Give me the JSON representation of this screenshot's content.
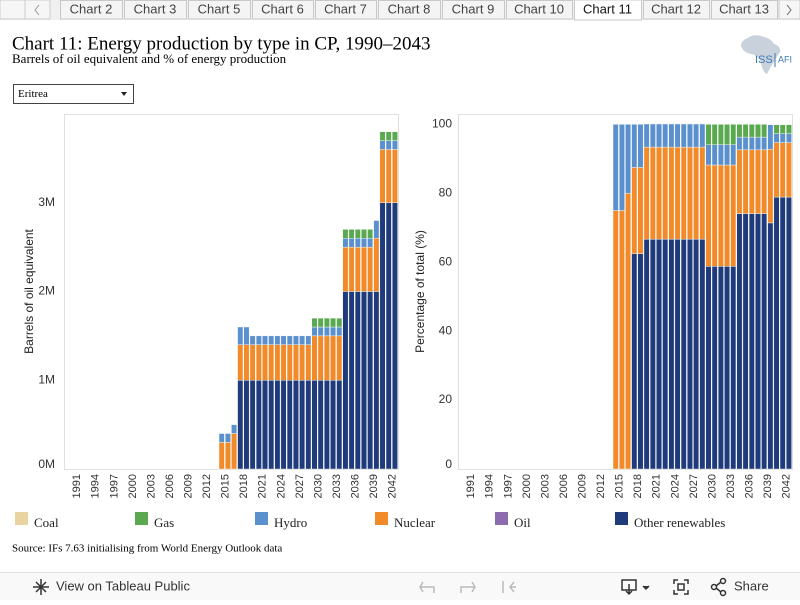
{
  "tabs": [
    "Chart 2",
    "Chart 3",
    "Chart 5",
    "Chart 6",
    "Chart 7",
    "Chart 8",
    "Chart 9",
    "Chart 10",
    "Chart 11",
    "Chart 12",
    "Chart 13"
  ],
  "active_tab": 8,
  "title": "Chart 11: Energy production by type in CP, 1990–2043",
  "subtitle": "Barrels of oil equivalent and % of energy production",
  "logo": {
    "left": "ISS",
    "right": "AFI"
  },
  "dropdown": "Eritrea",
  "legend": [
    {
      "name": "Coal",
      "color": "#e9d3a1"
    },
    {
      "name": "Gas",
      "color": "#5aa84f"
    },
    {
      "name": "Hydro",
      "color": "#5b90cf"
    },
    {
      "name": "Nuclear",
      "color": "#f28a2a"
    },
    {
      "name": "Oil",
      "color": "#8b6cae"
    },
    {
      "name": "Other renewables",
      "color": "#1f3b7b"
    }
  ],
  "source": "Source: IFs 7.63 initialising from World Energy Outlook data",
  "toolbar": {
    "view": "View on Tableau Public",
    "share": "Share"
  },
  "chart_data": [
    {
      "type": "stacked-bar",
      "y_label": "Barrels of oil equivalent",
      "categories": [
        null,
        "1991",
        null,
        null,
        "1994",
        null,
        null,
        "1997",
        null,
        null,
        "2000",
        null,
        null,
        "2003",
        null,
        null,
        "2006",
        null,
        null,
        "2009",
        null,
        null,
        "2012",
        null,
        null,
        "2015",
        null,
        null,
        "2018",
        null,
        null,
        "2021",
        null,
        null,
        "2024",
        null,
        null,
        "2027",
        null,
        null,
        "2030",
        null,
        null,
        "2033",
        null,
        null,
        "2036",
        null,
        null,
        "2039",
        null,
        null,
        "2042",
        null
      ],
      "ylim": [
        0,
        4000000
      ],
      "yticks": [
        {
          "value": 0,
          "label": "0M"
        },
        {
          "value": 1000000,
          "label": "1M"
        },
        {
          "value": 2000000,
          "label": "2M"
        },
        {
          "value": 3000000,
          "label": "3M"
        }
      ],
      "series": [
        {
          "values": [
            0,
            0,
            0,
            0,
            0,
            0,
            0,
            0,
            0,
            0,
            0,
            0,
            0,
            0,
            0,
            0,
            0,
            0,
            0,
            0,
            0,
            0,
            0,
            0,
            0,
            0,
            0,
            0,
            0,
            0,
            0,
            0,
            0,
            0,
            0,
            0,
            0,
            0,
            0,
            0,
            0,
            0,
            0,
            0,
            0,
            0,
            0,
            0,
            0,
            0,
            0,
            0,
            0,
            0
          ]
        },
        {
          "values": [
            0,
            0,
            0,
            0,
            0,
            0,
            0,
            0,
            0,
            0,
            0,
            0,
            0,
            0,
            0,
            0,
            0,
            0,
            0,
            0,
            0,
            0,
            0,
            0,
            0,
            0,
            0,
            0,
            0,
            0,
            0,
            0,
            0,
            0,
            0,
            0,
            0,
            0,
            0,
            0,
            100000,
            100000,
            100000,
            100000,
            100000,
            100000,
            100000,
            100000,
            100000,
            100000,
            0,
            100000,
            100000,
            100000
          ]
        },
        {
          "values": [
            0,
            0,
            0,
            0,
            0,
            0,
            0,
            0,
            0,
            0,
            0,
            0,
            0,
            0,
            0,
            0,
            0,
            0,
            0,
            0,
            0,
            0,
            0,
            0,
            0,
            100000,
            100000,
            100000,
            200000,
            200000,
            100000,
            100000,
            100000,
            100000,
            100000,
            100000,
            100000,
            100000,
            100000,
            100000,
            100000,
            100000,
            100000,
            100000,
            100000,
            100000,
            100000,
            100000,
            100000,
            100000,
            200000,
            100000,
            100000,
            100000
          ]
        },
        {
          "values": [
            0,
            0,
            0,
            0,
            0,
            0,
            0,
            0,
            0,
            0,
            0,
            0,
            0,
            0,
            0,
            0,
            0,
            0,
            0,
            0,
            0,
            0,
            0,
            0,
            0,
            300000,
            300000,
            400000,
            400000,
            400000,
            400000,
            400000,
            400000,
            400000,
            400000,
            400000,
            400000,
            400000,
            400000,
            400000,
            500000,
            500000,
            500000,
            500000,
            500000,
            500000,
            500000,
            500000,
            500000,
            500000,
            600000,
            600000,
            600000,
            600000
          ]
        },
        {
          "values": [
            0,
            0,
            0,
            0,
            0,
            0,
            0,
            0,
            0,
            0,
            0,
            0,
            0,
            0,
            0,
            0,
            0,
            0,
            0,
            0,
            0,
            0,
            0,
            0,
            0,
            0,
            0,
            0,
            0,
            0,
            0,
            0,
            0,
            0,
            0,
            0,
            0,
            0,
            0,
            0,
            0,
            0,
            0,
            0,
            0,
            0,
            0,
            0,
            0,
            0,
            0,
            0,
            0,
            0
          ]
        },
        {
          "values": [
            0,
            0,
            0,
            0,
            0,
            0,
            0,
            0,
            0,
            0,
            0,
            0,
            0,
            0,
            0,
            0,
            0,
            0,
            0,
            0,
            0,
            0,
            0,
            0,
            0,
            0,
            0,
            0,
            1000000,
            1000000,
            1000000,
            1000000,
            1000000,
            1000000,
            1000000,
            1000000,
            1000000,
            1000000,
            1000000,
            1000000,
            1000000,
            1000000,
            1000000,
            1000000,
            1000000,
            2000000,
            2000000,
            2000000,
            2000000,
            2000000,
            2000000,
            3000000,
            3000000,
            3000000
          ]
        }
      ]
    },
    {
      "type": "stacked-bar",
      "y_label": "Percentage of total (%)",
      "categories": [
        null,
        "1991",
        null,
        null,
        "1994",
        null,
        null,
        "1997",
        null,
        null,
        "2000",
        null,
        null,
        "2003",
        null,
        null,
        "2006",
        null,
        null,
        "2009",
        null,
        null,
        "2012",
        null,
        null,
        "2015",
        null,
        null,
        "2018",
        null,
        null,
        "2021",
        null,
        null,
        "2024",
        null,
        null,
        "2027",
        null,
        null,
        "2030",
        null,
        null,
        "2033",
        null,
        null,
        "2036",
        null,
        null,
        "2039",
        null,
        null,
        "2042",
        null
      ],
      "ylim": [
        0,
        103
      ],
      "yticks": [
        0,
        20,
        40,
        60,
        80,
        100
      ],
      "series": [
        {
          "values": [
            0,
            0,
            0,
            0,
            0,
            0,
            0,
            0,
            0,
            0,
            0,
            0,
            0,
            0,
            0,
            0,
            0,
            0,
            0,
            0,
            0,
            0,
            0,
            0,
            0,
            0,
            0,
            0,
            0,
            0,
            0,
            0,
            0,
            0,
            0,
            0,
            0,
            0,
            0,
            0,
            0,
            0,
            0,
            0,
            0,
            0,
            0,
            0,
            0,
            0,
            0,
            0,
            0,
            0
          ]
        },
        {
          "values": [
            0,
            0,
            0,
            0,
            0,
            0,
            0,
            0,
            0,
            0,
            0,
            0,
            0,
            0,
            0,
            0,
            0,
            0,
            0,
            0,
            0,
            0,
            0,
            0,
            0,
            0,
            0,
            0,
            0,
            0,
            0,
            0,
            0,
            0,
            0,
            0,
            0,
            0,
            0,
            0,
            5.9,
            5.9,
            5.9,
            5.9,
            5.9,
            3.7,
            3.7,
            3.7,
            3.7,
            3.7,
            0,
            2.6,
            2.6,
            2.6
          ]
        },
        {
          "values": [
            0,
            0,
            0,
            0,
            0,
            0,
            0,
            0,
            0,
            0,
            0,
            0,
            0,
            0,
            0,
            0,
            0,
            0,
            0,
            0,
            0,
            0,
            0,
            0,
            0,
            25,
            25,
            20,
            12.5,
            12.5,
            6.7,
            6.7,
            6.7,
            6.7,
            6.7,
            6.7,
            6.7,
            6.7,
            6.7,
            6.7,
            5.9,
            5.9,
            5.9,
            5.9,
            5.9,
            3.7,
            3.7,
            3.7,
            3.7,
            3.7,
            7.1,
            2.6,
            2.6,
            2.6
          ]
        },
        {
          "values": [
            0,
            0,
            0,
            0,
            0,
            0,
            0,
            0,
            0,
            0,
            0,
            0,
            0,
            0,
            0,
            0,
            0,
            0,
            0,
            0,
            0,
            0,
            0,
            0,
            0,
            75,
            75,
            80,
            25,
            25,
            26.7,
            26.7,
            26.7,
            26.7,
            26.7,
            26.7,
            26.7,
            26.7,
            26.7,
            26.7,
            29.4,
            29.4,
            29.4,
            29.4,
            29.4,
            18.5,
            18.5,
            18.5,
            18.5,
            18.5,
            21.4,
            15.8,
            15.8,
            15.8
          ]
        },
        {
          "values": [
            0,
            0,
            0,
            0,
            0,
            0,
            0,
            0,
            0,
            0,
            0,
            0,
            0,
            0,
            0,
            0,
            0,
            0,
            0,
            0,
            0,
            0,
            0,
            0,
            0,
            0,
            0,
            0,
            0,
            0,
            0,
            0,
            0,
            0,
            0,
            0,
            0,
            0,
            0,
            0,
            0,
            0,
            0,
            0,
            0,
            0,
            0,
            0,
            0,
            0,
            0,
            0,
            0,
            0
          ]
        },
        {
          "values": [
            0,
            0,
            0,
            0,
            0,
            0,
            0,
            0,
            0,
            0,
            0,
            0,
            0,
            0,
            0,
            0,
            0,
            0,
            0,
            0,
            0,
            0,
            0,
            0,
            0,
            0,
            0,
            0,
            62.5,
            62.5,
            66.7,
            66.7,
            66.7,
            66.7,
            66.7,
            66.7,
            66.7,
            66.7,
            66.7,
            66.7,
            58.8,
            58.8,
            58.8,
            58.8,
            58.8,
            74.1,
            74.1,
            74.1,
            74.1,
            74.1,
            71.4,
            78.9,
            78.9,
            78.9
          ]
        }
      ]
    }
  ]
}
